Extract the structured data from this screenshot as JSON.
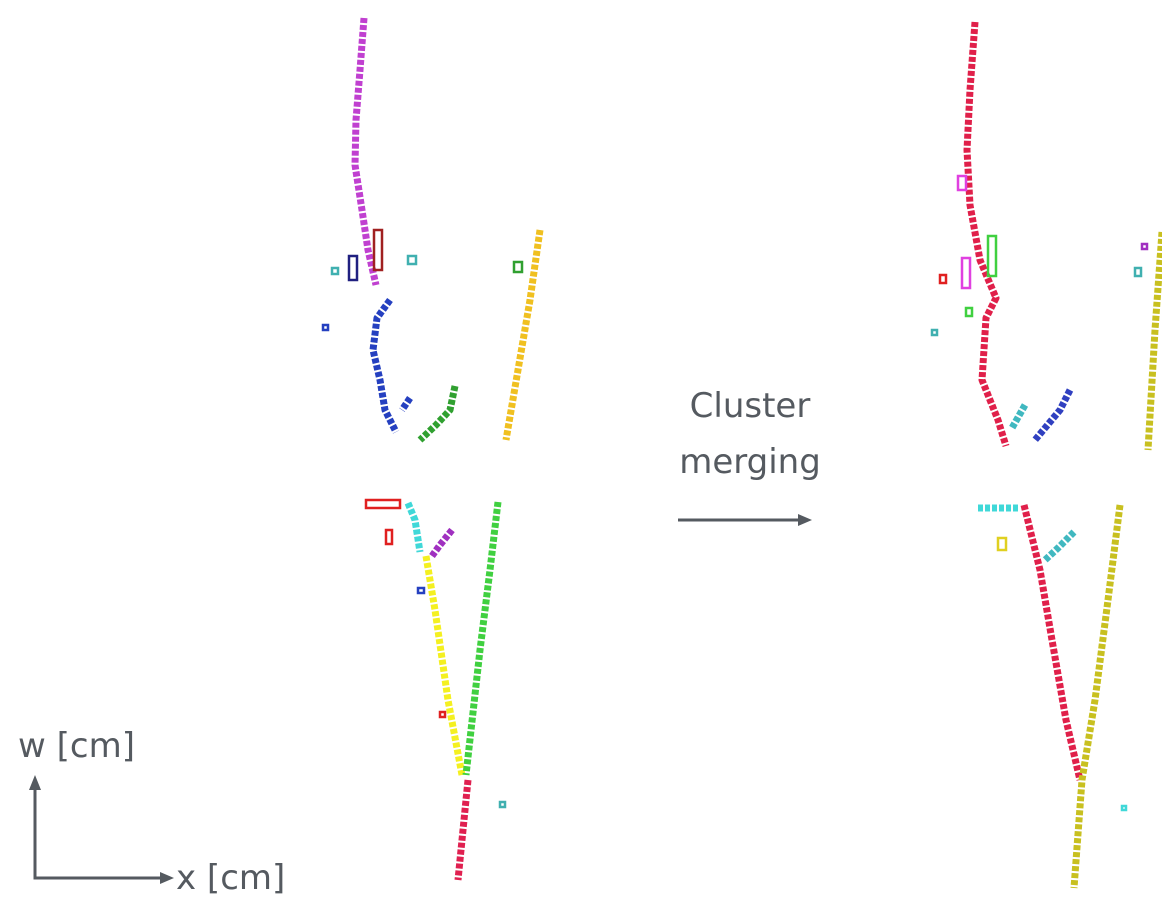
{
  "merge_label": "Cluster merging",
  "axes": {
    "y_label": "w [cm]",
    "x_label": "x [cm]"
  }
}
